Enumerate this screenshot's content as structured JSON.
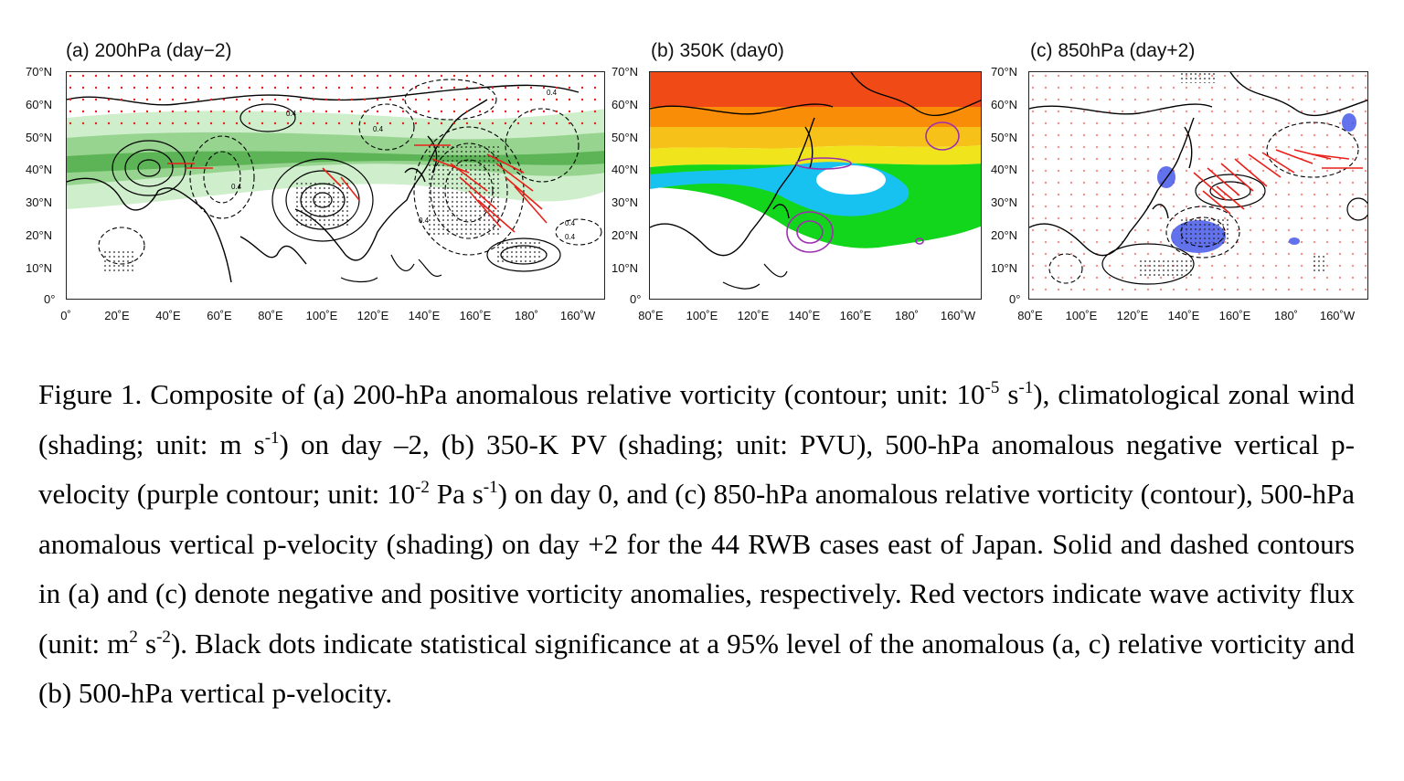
{
  "panels": [
    {
      "title": "(a) 200hPa (day−2)",
      "lat_labels": [
        "70°N",
        "60°N",
        "50°N",
        "40°N",
        "30°N",
        "20°N",
        "10°N",
        "0°"
      ],
      "lon_labels": [
        "0˚",
        "20˚E",
        "40˚E",
        "60˚E",
        "80˚E",
        "100˚E",
        "120˚E",
        "140˚E",
        "160˚E",
        "180˚",
        "160˚W"
      ],
      "contour_labels": [
        "0.4",
        "0.4",
        "0.4",
        "0.4",
        "0.4",
        "0.4",
        "0.4"
      ]
    },
    {
      "title": "(b) 350K (day0)",
      "lat_labels": [
        "70°N",
        "60°N",
        "50°N",
        "40°N",
        "30°N",
        "20°N",
        "10°N",
        "0°"
      ],
      "lon_labels": [
        "80˚E",
        "100˚E",
        "120˚E",
        "140˚E",
        "160˚E",
        "180˚",
        "160˚W"
      ]
    },
    {
      "title": "(c) 850hPa (day+2)",
      "lat_labels": [
        "70°N",
        "60°N",
        "50°N",
        "40°N",
        "30°N",
        "20°N",
        "10°N",
        "0°"
      ],
      "lon_labels": [
        "80˚E",
        "100˚E",
        "120˚E",
        "140˚E",
        "160˚E",
        "180˚",
        "160˚W"
      ]
    }
  ],
  "colors": {
    "jet_light": "#cfeecb",
    "jet_mid": "#97d48f",
    "jet_dark": "#5cb457",
    "pv_red": "#f04a16",
    "pv_orange": "#f98d08",
    "pv_yellow_orange": "#f6c21a",
    "pv_yellow": "#f0e51c",
    "pv_green": "#12d61c",
    "pv_cyan": "#18c2f0",
    "omega_purple": "#9b2fb0",
    "omega_blue": "#3b4fe8",
    "vector_red": "#e8201a"
  },
  "caption": {
    "p1": "Figure 1. Composite of (a) 200-hPa anomalous relative vorticity (contour; unit: 10",
    "s1": "-5",
    "p2": " s",
    "s2": "-1",
    "p3": "), climatological zonal wind (shading; unit: m s",
    "s3": "-1",
    "p4": ") on day –2, (b) 350-K PV (shading; unit: PVU), 500-hPa anomalous negative vertical p-velocity (purple contour; unit: 10",
    "s4": "-2",
    "p5": " Pa s",
    "s5": "-1",
    "p6": ") on day 0, and (c) 850-hPa anomalous relative vorticity (contour), 500-hPa anomalous vertical p-velocity (shading) on day +2 for the 44 RWB cases east of Japan. Solid and dashed contours in (a) and (c) denote negative and positive vorticity anomalies, respectively. Red vectors indicate wave activity flux (unit: m",
    "s6": "2",
    "p7": " s",
    "s7": "-2",
    "p8": "). Black dots indicate statistical significance at a 95% level of the anomalous (a, c) relative vorticity and (b) 500-hPa vertical p-velocity."
  }
}
